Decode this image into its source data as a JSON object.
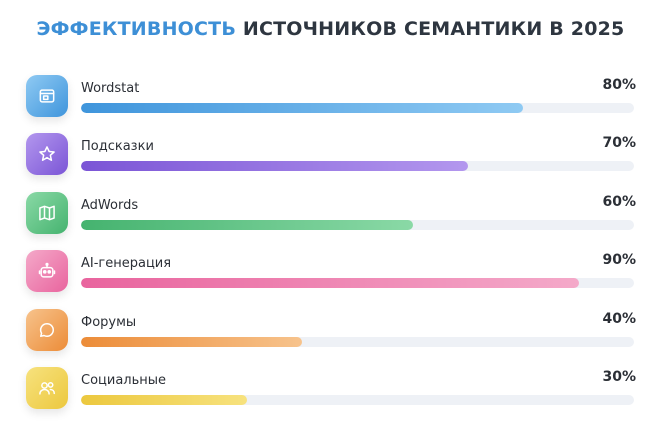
{
  "title": {
    "highlight": "ЭФФЕКТИВНОСТЬ",
    "rest": "ИСТОЧНИКОВ СЕМАНТИКИ В 2025"
  },
  "chart_data": {
    "type": "bar",
    "orientation": "horizontal",
    "title": "ЭФФЕКТИВНОСТЬ ИСТОЧНИКОВ СЕМАНТИКИ В 2025",
    "xlim": [
      0,
      100
    ],
    "grid": false,
    "categories": [
      "Wordstat",
      "Подсказки",
      "AdWords",
      "AI-генерация",
      "Форумы",
      "Социальные"
    ],
    "values": [
      80,
      70,
      60,
      90,
      40,
      30
    ],
    "value_labels": [
      "80%",
      "70%",
      "60%",
      "90%",
      "40%",
      "30%"
    ],
    "bars": [
      {
        "label": "Wordstat",
        "value": 80,
        "value_label": "80%",
        "icon": "browser-window-icon",
        "color_start": "#3f95dc",
        "color_end": "#8fcaf3"
      },
      {
        "label": "Подсказки",
        "value": 70,
        "value_label": "70%",
        "icon": "star-icon",
        "color_start": "#7b55d6",
        "color_end": "#b397ee"
      },
      {
        "label": "AdWords",
        "value": 60,
        "value_label": "60%",
        "icon": "map-icon",
        "color_start": "#45b36f",
        "color_end": "#8ad9a6"
      },
      {
        "label": "AI-генерация",
        "value": 90,
        "value_label": "90%",
        "icon": "robot-icon",
        "color_start": "#e9649e",
        "color_end": "#f4a9c9"
      },
      {
        "label": "Форумы",
        "value": 40,
        "value_label": "40%",
        "icon": "chat-bubble-icon",
        "color_start": "#ec8c38",
        "color_end": "#f7c38c"
      },
      {
        "label": "Социальные",
        "value": 30,
        "value_label": "30%",
        "icon": "users-icon",
        "color_start": "#ecc83e",
        "color_end": "#f7e27e"
      }
    ]
  }
}
